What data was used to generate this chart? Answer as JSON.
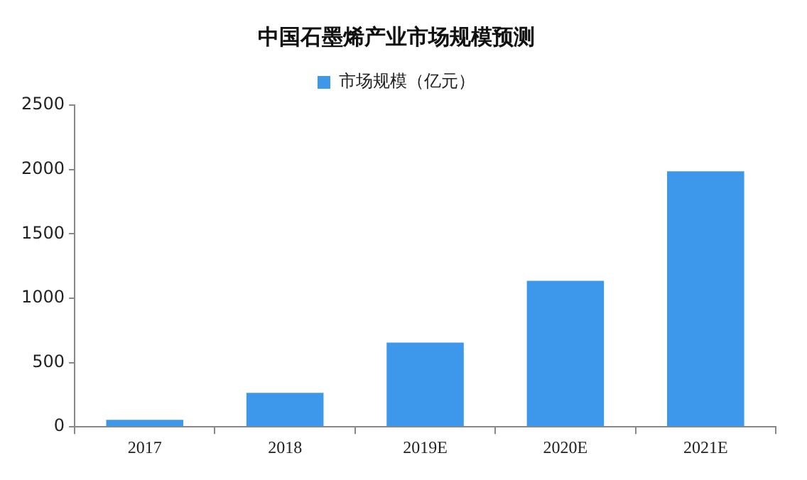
{
  "chart_data": {
    "type": "bar",
    "title": "中国石墨烯产业市场规模预测",
    "categories": [
      "2017",
      "2018",
      "2019E",
      "2020E",
      "2021E"
    ],
    "series": [
      {
        "name": "市场规模（亿元）",
        "color": "#3d97ea",
        "values": [
          55,
          265,
          655,
          1135,
          1985
        ]
      }
    ],
    "ylim": [
      0,
      2500
    ],
    "yticks": [
      0,
      500,
      1000,
      1500,
      2000,
      2500
    ],
    "grid": false,
    "legend": "top"
  }
}
